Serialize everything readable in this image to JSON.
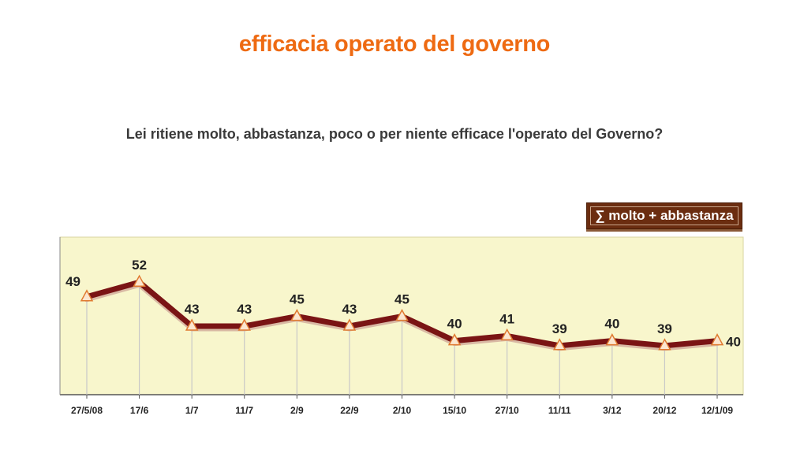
{
  "title": "efficacia operato del governo",
  "question": "Lei ritiene molto, abbastanza, poco o per niente efficace l'operato del Governo?",
  "colors": {
    "title": "#ee6a12",
    "plot_bg": "#f8f6cc",
    "line": "#7a1414",
    "marker_fill": "#fbe6cf",
    "marker_stroke": "#e07a30",
    "legend_bg": "#6b2d10"
  },
  "chart_data": {
    "type": "line",
    "categories": [
      "27/5/08",
      "17/6",
      "1/7",
      "11/7",
      "2/9",
      "22/9",
      "2/10",
      "15/10",
      "27/10",
      "11/11",
      "3/12",
      "20/12",
      "12/1/09"
    ],
    "series": [
      {
        "name": "∑ molto + abbastanza",
        "values": [
          49,
          52,
          43,
          43,
          45,
          43,
          45,
          40,
          41,
          39,
          40,
          39,
          40
        ]
      }
    ],
    "legend_position": "top-right",
    "grid": false,
    "y_axis_visible": false,
    "data_labels": true
  }
}
